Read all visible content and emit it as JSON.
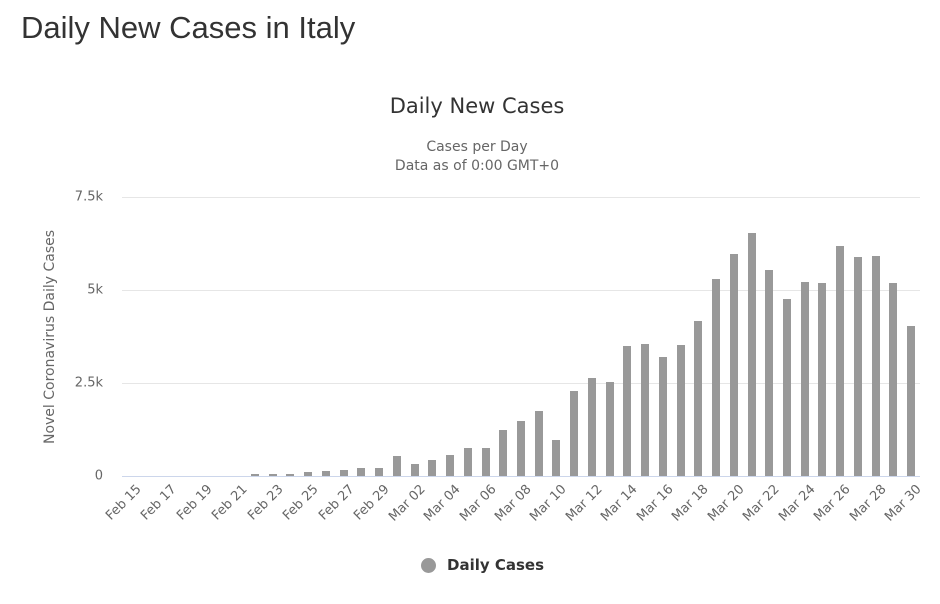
{
  "page": {
    "title": "Daily New Cases in Italy"
  },
  "chart": {
    "title": "Daily New Cases",
    "subtitle_line1": "Cases per Day",
    "subtitle_line2": "Data as of 0:00 GMT+0",
    "ylabel": "Novel Coronavirus Daily Cases",
    "yticks": [
      "0",
      "2.5k",
      "5k",
      "7.5k"
    ],
    "legend": "Daily Cases",
    "bar_color": "#999999"
  },
  "chart_data": {
    "type": "bar",
    "title": "Daily New Cases",
    "subtitle": "Cases per Day / Data as of 0:00 GMT+0",
    "xlabel": "",
    "ylabel": "Novel Coronavirus Daily Cases",
    "ylim": [
      0,
      7500
    ],
    "yticks": [
      0,
      2500,
      5000,
      7500
    ],
    "ytick_labels": [
      "0",
      "2.5k",
      "5k",
      "7.5k"
    ],
    "grid": true,
    "legend_position": "bottom-center",
    "xtick_labels": [
      "Feb 15",
      "Feb 17",
      "Feb 19",
      "Feb 21",
      "Feb 23",
      "Feb 25",
      "Feb 27",
      "Feb 29",
      "Mar 02",
      "Mar 04",
      "Mar 06",
      "Mar 08",
      "Mar 10",
      "Mar 12",
      "Mar 14",
      "Mar 16",
      "Mar 18",
      "Mar 20",
      "Mar 22",
      "Mar 24",
      "Mar 26",
      "Mar 28",
      "Mar 30"
    ],
    "categories": [
      "Feb 15",
      "Feb 16",
      "Feb 17",
      "Feb 18",
      "Feb 19",
      "Feb 20",
      "Feb 21",
      "Feb 22",
      "Feb 23",
      "Feb 24",
      "Feb 25",
      "Feb 26",
      "Feb 27",
      "Feb 28",
      "Feb 29",
      "Mar 01",
      "Mar 02",
      "Mar 03",
      "Mar 04",
      "Mar 05",
      "Mar 06",
      "Mar 07",
      "Mar 08",
      "Mar 09",
      "Mar 10",
      "Mar 11",
      "Mar 12",
      "Mar 13",
      "Mar 14",
      "Mar 15",
      "Mar 16",
      "Mar 17",
      "Mar 18",
      "Mar 19",
      "Mar 20",
      "Mar 21",
      "Mar 22",
      "Mar 23",
      "Mar 24",
      "Mar 25",
      "Mar 26",
      "Mar 27",
      "Mar 28",
      "Mar 29",
      "Mar 30"
    ],
    "series": [
      {
        "name": "Daily Cases",
        "color": "#999999",
        "values": [
          0,
          0,
          0,
          0,
          0,
          0,
          0,
          45,
          45,
          45,
          110,
          125,
          160,
          225,
          225,
          540,
          320,
          430,
          565,
          750,
          750,
          1240,
          1480,
          1750,
          970,
          2290,
          2640,
          2530,
          3490,
          3555,
          3200,
          3525,
          4180,
          5300,
          5960,
          6520,
          5540,
          4765,
          5225,
          5190,
          6170,
          5890,
          5925,
          5200,
          4030
        ]
      }
    ]
  }
}
